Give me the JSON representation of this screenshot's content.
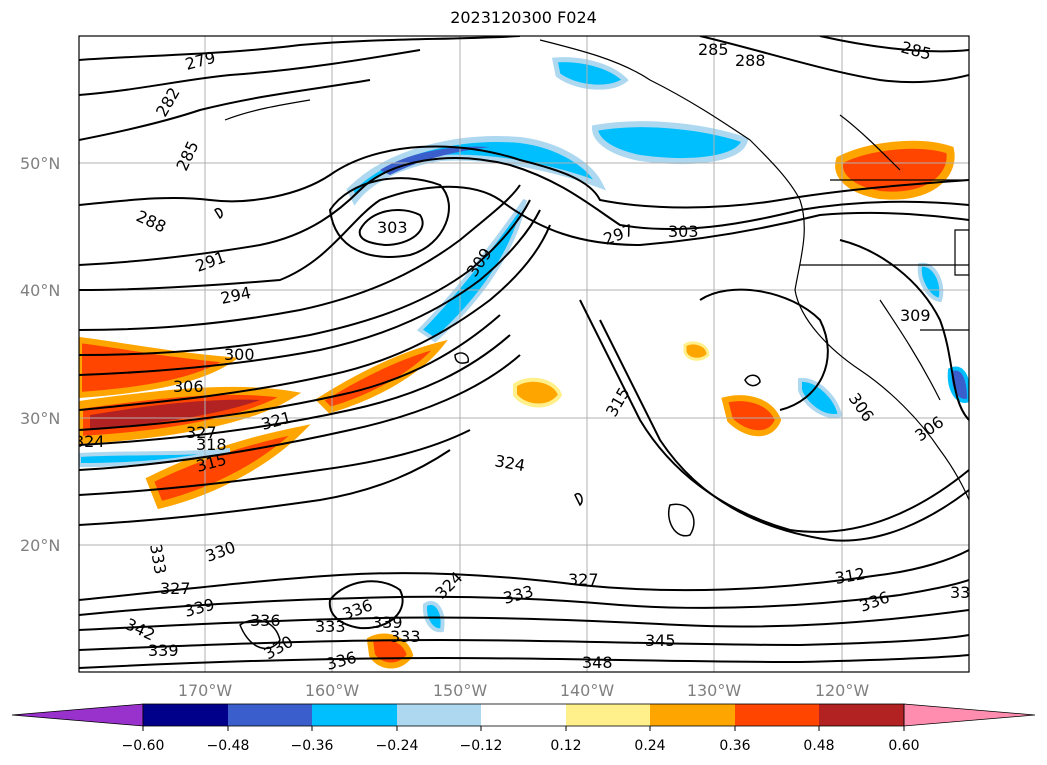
{
  "title": "2023120300 F024",
  "map": {
    "lat_labels": [
      "50°N",
      "40°N",
      "30°N",
      "20°N"
    ],
    "lon_labels": [
      "170°W",
      "160°W",
      "150°W",
      "140°W",
      "130°W",
      "120°W"
    ],
    "contour_labels": [
      "279",
      "282",
      "285",
      "288",
      "291",
      "294",
      "300",
      "306",
      "324",
      "327",
      "318",
      "315",
      "321",
      "303",
      "309",
      "297",
      "303",
      "285",
      "288",
      "285",
      "309",
      "306",
      "306",
      "315",
      "324",
      "327",
      "333",
      "345",
      "348",
      "312",
      "336",
      "33",
      "333",
      "330",
      "327",
      "339",
      "342",
      "339",
      "336",
      "330",
      "333",
      "336",
      "339",
      "333",
      "324",
      "336"
    ]
  },
  "colorbar": {
    "colors": [
      "#9932CC",
      "#00008B",
      "#3A5FCD",
      "#00BFFF",
      "#ADD8F0",
      "#FFFFFF",
      "#FFF08C",
      "#FFA500",
      "#FF4500",
      "#B22222",
      "#FF8DB0",
      "#FF8DB0"
    ],
    "ticks": [
      "−0.60",
      "−0.48",
      "−0.36",
      "−0.24",
      "−0.12",
      "0.12",
      "0.24",
      "0.36",
      "0.48",
      "0.60"
    ]
  }
}
